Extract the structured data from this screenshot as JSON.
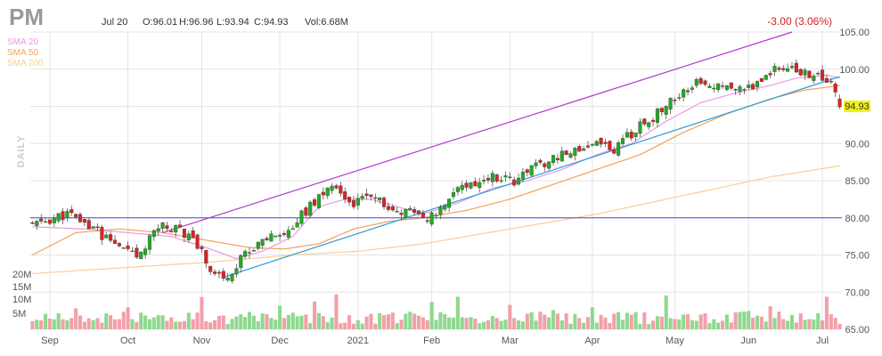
{
  "header": {
    "ticker": "PM",
    "date": "Jul 20",
    "open_label": "O:96.01",
    "high_label": "H:96.96",
    "low_label": "L:93.94",
    "close_label": "C:94.93",
    "volume_label": "Vol:6.68M",
    "change": "-3.00 (3.06%)"
  },
  "legend": [
    {
      "label": "SMA 20",
      "color": "#e89be0"
    },
    {
      "label": "SMA 50",
      "color": "#f5a05a"
    },
    {
      "label": "SMA 200",
      "color": "#f7cf94"
    }
  ],
  "side_label": "DAILY",
  "colors": {
    "up": "#22aa22",
    "down": "#dd2222",
    "vol_up": "#8fd88f",
    "vol_down": "#f2a0a8",
    "channel": "#b03cc8",
    "trendline": "#2a9bd6",
    "hline": "#4a4ad0",
    "grid": "#e4e4e4",
    "last_price_bg": "#f2f21a",
    "change": "#cc2222"
  },
  "chart_data": {
    "type": "candlestick",
    "title": "PM",
    "timeframe": "DAILY",
    "y_ticks": [
      "65.00",
      "70.00",
      "75.00",
      "80.00",
      "85.00",
      "90.00",
      "95.00",
      "100.00",
      "105.00"
    ],
    "ylim": [
      65,
      105
    ],
    "volume_ticks": [
      "5M",
      "10M",
      "15M",
      "20M"
    ],
    "x_ticks": [
      "Sep",
      "Oct",
      "Nov",
      "Dec",
      "2021",
      "Feb",
      "Mar",
      "Apr",
      "May",
      "Jun",
      "Jul"
    ],
    "last_price": "94.93",
    "horizontal_line": 80.0,
    "price_path": [
      [
        0,
        79.0
      ],
      [
        8,
        80.5
      ],
      [
        15,
        78.0
      ],
      [
        20,
        76.0
      ],
      [
        24,
        74.5
      ],
      [
        29,
        79.0
      ],
      [
        34,
        78.5
      ],
      [
        38,
        76.5
      ],
      [
        41,
        73.0
      ],
      [
        44,
        72.0
      ],
      [
        47,
        73.5
      ],
      [
        50,
        76.0
      ],
      [
        56,
        77.5
      ],
      [
        60,
        79.0
      ],
      [
        66,
        83.0
      ],
      [
        70,
        84.5
      ],
      [
        73,
        82.0
      ],
      [
        78,
        82.5
      ],
      [
        83,
        81.5
      ],
      [
        88,
        80.5
      ],
      [
        92,
        80.0
      ],
      [
        96,
        83.0
      ],
      [
        101,
        84.5
      ],
      [
        106,
        85.5
      ],
      [
        111,
        85.0
      ],
      [
        116,
        87.0
      ],
      [
        121,
        88.0
      ],
      [
        126,
        89.5
      ],
      [
        130,
        90.0
      ],
      [
        134,
        89.0
      ],
      [
        139,
        92.0
      ],
      [
        144,
        94.0
      ],
      [
        149,
        96.5
      ],
      [
        153,
        98.0
      ],
      [
        158,
        97.5
      ],
      [
        163,
        97.5
      ],
      [
        167,
        98.0
      ],
      [
        171,
        100.5
      ],
      [
        175,
        100.0
      ],
      [
        179,
        99.5
      ],
      [
        182,
        98.5
      ],
      [
        184,
        97.8
      ],
      [
        186,
        94.93
      ]
    ],
    "sma20_path": [
      [
        0,
        78.8
      ],
      [
        12,
        78.5
      ],
      [
        22,
        78.0
      ],
      [
        32,
        77.5
      ],
      [
        40,
        76.0
      ],
      [
        47,
        74.5
      ],
      [
        53,
        75.5
      ],
      [
        60,
        77.5
      ],
      [
        66,
        81.5
      ],
      [
        72,
        82.5
      ],
      [
        78,
        82.5
      ],
      [
        84,
        81.5
      ],
      [
        90,
        80.5
      ],
      [
        98,
        82.0
      ],
      [
        106,
        84.0
      ],
      [
        114,
        85.0
      ],
      [
        122,
        86.5
      ],
      [
        130,
        88.5
      ],
      [
        138,
        90.0
      ],
      [
        146,
        93.0
      ],
      [
        154,
        95.5
      ],
      [
        162,
        96.8
      ],
      [
        170,
        97.8
      ],
      [
        176,
        98.8
      ],
      [
        183,
        99.2
      ],
      [
        186,
        98.8
      ]
    ],
    "sma50_path": [
      [
        0,
        75.0
      ],
      [
        10,
        78.0
      ],
      [
        20,
        78.5
      ],
      [
        30,
        78.0
      ],
      [
        40,
        77.0
      ],
      [
        50,
        76.0
      ],
      [
        58,
        75.8
      ],
      [
        66,
        76.5
      ],
      [
        74,
        78.5
      ],
      [
        82,
        79.5
      ],
      [
        90,
        80.0
      ],
      [
        100,
        81.0
      ],
      [
        110,
        82.5
      ],
      [
        120,
        84.5
      ],
      [
        130,
        86.5
      ],
      [
        140,
        88.5
      ],
      [
        150,
        91.5
      ],
      [
        160,
        94.0
      ],
      [
        170,
        96.0
      ],
      [
        178,
        97.2
      ],
      [
        186,
        97.8
      ]
    ],
    "sma200_path": [
      [
        0,
        72.5
      ],
      [
        40,
        74.0
      ],
      [
        60,
        75.0
      ],
      [
        75,
        75.5
      ],
      [
        90,
        76.5
      ],
      [
        110,
        78.5
      ],
      [
        130,
        80.5
      ],
      [
        150,
        83.0
      ],
      [
        170,
        85.5
      ],
      [
        186,
        87.0
      ]
    ],
    "channel_line": {
      "from": [
        30,
        78.0
      ],
      "to": [
        175,
        105.0
      ]
    },
    "trendline": {
      "from": [
        44,
        72.0
      ],
      "to": [
        186,
        99.0
      ]
    },
    "candles_count": 187
  }
}
